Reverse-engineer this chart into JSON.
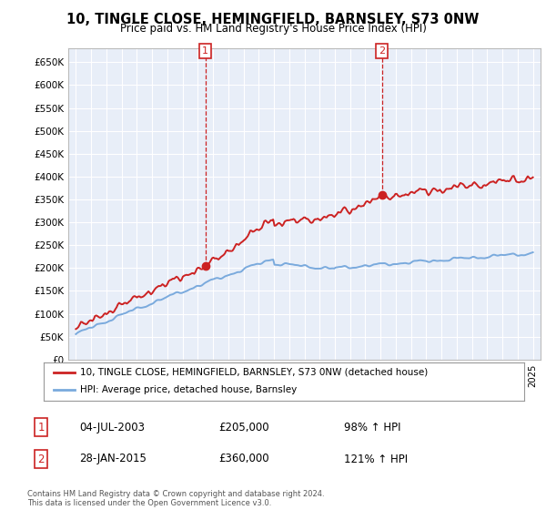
{
  "title_line1": "10, TINGLE CLOSE, HEMINGFIELD, BARNSLEY, S73 0NW",
  "title_line2": "Price paid vs. HM Land Registry's House Price Index (HPI)",
  "ylabel_ticks": [
    "£0",
    "£50K",
    "£100K",
    "£150K",
    "£200K",
    "£250K",
    "£300K",
    "£350K",
    "£400K",
    "£450K",
    "£500K",
    "£550K",
    "£600K",
    "£650K"
  ],
  "ytick_values": [
    0,
    50000,
    100000,
    150000,
    200000,
    250000,
    300000,
    350000,
    400000,
    450000,
    500000,
    550000,
    600000,
    650000
  ],
  "ylim": [
    0,
    680000
  ],
  "xlim_start": 1994.5,
  "xlim_end": 2025.5,
  "hpi_color": "#7aaadd",
  "price_color": "#cc2222",
  "sale1_date": 2003.5,
  "sale1_price": 205000,
  "sale2_date": 2015.08,
  "sale2_price": 360000,
  "legend_line1": "10, TINGLE CLOSE, HEMINGFIELD, BARNSLEY, S73 0NW (detached house)",
  "legend_line2": "HPI: Average price, detached house, Barnsley",
  "table_row1_num": "1",
  "table_row1_date": "04-JUL-2003",
  "table_row1_price": "£205,000",
  "table_row1_hpi": "98% ↑ HPI",
  "table_row2_num": "2",
  "table_row2_date": "28-JAN-2015",
  "table_row2_price": "£360,000",
  "table_row2_hpi": "121% ↑ HPI",
  "footer": "Contains HM Land Registry data © Crown copyright and database right 2024.\nThis data is licensed under the Open Government Licence v3.0.",
  "plot_bg_color": "#e8eef8"
}
